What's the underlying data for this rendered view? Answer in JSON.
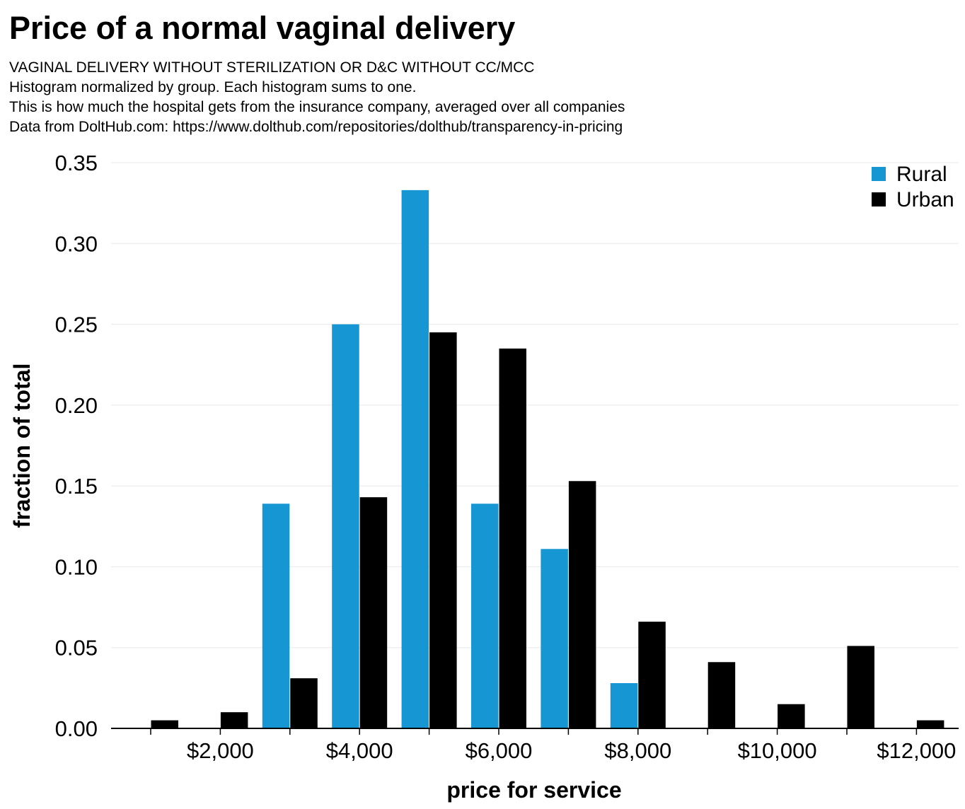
{
  "chart_data": {
    "type": "bar",
    "title": "Price of a normal vaginal delivery",
    "subtitles": [
      "VAGINAL DELIVERY WITHOUT STERILIZATION OR D&C WITHOUT CC/MCC",
      "Histogram normalized by group. Each histogram sums to one.",
      "This is how much the hospital gets from the insurance company, averaged over all companies",
      "Data from DoltHub.com: https://www.dolthub.com/repositories/dolthub/transparency-in-pricing"
    ],
    "xlabel": "price for service",
    "ylabel": "fraction of total",
    "x": [
      1000,
      2000,
      3000,
      4000,
      5000,
      6000,
      7000,
      8000,
      9000,
      10000,
      11000,
      12000
    ],
    "series": [
      {
        "name": "Rural",
        "color": "#1696d2",
        "values": [
          0,
          0,
          0.139,
          0.25,
          0.333,
          0.139,
          0.111,
          0.028,
          0,
          0,
          0,
          0
        ]
      },
      {
        "name": "Urban",
        "color": "#000000",
        "values": [
          0.005,
          0.01,
          0.031,
          0.143,
          0.245,
          0.235,
          0.153,
          0.066,
          0.041,
          0.015,
          0.051,
          0.005
        ]
      }
    ],
    "xlim": [
      400,
      12600
    ],
    "ylim": [
      0,
      0.35
    ],
    "yticks": [
      "0.00",
      "0.05",
      "0.10",
      "0.15",
      "0.20",
      "0.25",
      "0.30",
      "0.35"
    ],
    "xticks": [
      {
        "value": 2000,
        "label": "$2,000"
      },
      {
        "value": 4000,
        "label": "$4,000"
      },
      {
        "value": 6000,
        "label": "$6,000"
      },
      {
        "value": 8000,
        "label": "$8,000"
      },
      {
        "value": 10000,
        "label": "$10,000"
      },
      {
        "value": 12000,
        "label": "$12,000"
      }
    ],
    "grid": true,
    "legend_position": "top-right"
  }
}
